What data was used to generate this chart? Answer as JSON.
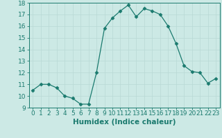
{
  "x": [
    0,
    1,
    2,
    3,
    4,
    5,
    6,
    7,
    8,
    9,
    10,
    11,
    12,
    13,
    14,
    15,
    16,
    17,
    18,
    19,
    20,
    21,
    22,
    23
  ],
  "y": [
    10.5,
    11.0,
    11.0,
    10.7,
    10.0,
    9.8,
    9.3,
    9.3,
    12.0,
    15.8,
    16.7,
    17.3,
    17.8,
    16.8,
    17.5,
    17.3,
    17.0,
    16.0,
    14.5,
    12.6,
    12.1,
    12.0,
    11.1,
    11.5
  ],
  "ylim": [
    9,
    18
  ],
  "yticks": [
    9,
    10,
    11,
    12,
    13,
    14,
    15,
    16,
    17,
    18
  ],
  "xticks": [
    0,
    1,
    2,
    3,
    4,
    5,
    6,
    7,
    8,
    9,
    10,
    11,
    12,
    13,
    14,
    15,
    16,
    17,
    18,
    19,
    20,
    21,
    22,
    23
  ],
  "xlabel": "Humidex (Indice chaleur)",
  "line_color": "#1a7a6e",
  "marker": "D",
  "marker_size": 2.5,
  "bg_color": "#cce9e5",
  "grid_color": "#b8d9d5",
  "tick_label_size": 6.5,
  "xlabel_size": 7.5
}
